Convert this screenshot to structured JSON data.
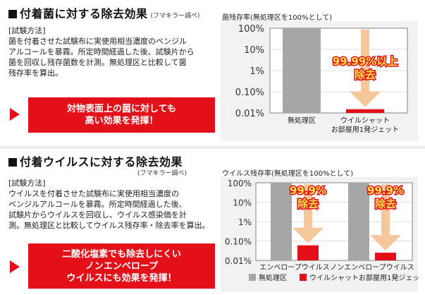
{
  "bacteria": {
    "title": "付着菌に対する除去効果",
    "ref": "(フマキラー調べ)",
    "method_label": "[試験方法]",
    "method_lines": [
      "菌を付着させた試験布に実使用相当濃度のベンジル",
      "アルコールを暴霧。所定時間経過した後、試験片から",
      "菌を回収し残存菌数を計測。無処理区と比較して菌",
      "残存率を算出。"
    ],
    "cta_lines": [
      "対物表面上の菌に対しても",
      "高い効果を発揮！"
    ],
    "chart_title": "菌残存率(無処理区を100%として)",
    "badge_lines": [
      "99.99%以上",
      "除去"
    ]
  },
  "virus": {
    "title": "付着ウイルスに対する除去効果",
    "ref": "(フマキラー調べ)",
    "method_label": "[試験方法]",
    "method_lines": [
      "ウイルスを付着させた試験布に実使用相当濃度の",
      "ベンジルアルコールを暴霧。所定時間経過した後、",
      "試験片からウイルスを回収し、ウイルス感染価を計",
      "測。無処理区と比較してウイルス残存率・除去率を算出。"
    ],
    "cta_lines": [
      "二酸化塩素でも除去しにくい",
      "ノンエンベロープ",
      "ウイルスにも効果を発揮！"
    ],
    "chart_title": "ウイルス残存率(無処理区を100%として)",
    "badge_lines": [
      "99.9%",
      "除去"
    ],
    "legend": [
      "無処理区",
      "ウイルシャット お部屋用1発ジェット"
    ]
  },
  "colors": {
    "accent_red": "#e41019",
    "gray_bar": "#a6a6a6",
    "arrow_orange": "#f6c79a",
    "badge_yellow": "#ffe14d"
  },
  "chart_data": [
    {
      "type": "bar",
      "scale": "log",
      "title": "菌残存率(無処理区を100%として)",
      "ylim": [
        0.01,
        100
      ],
      "yticks": [
        "100%",
        "10%",
        "1%",
        "0.10%",
        "0.01%"
      ],
      "categories": [
        "無処理区",
        "ウイルシャット お部屋用1発ジェット"
      ],
      "values": [
        100,
        0.015
      ],
      "bar_colors": [
        "#a6a6a6",
        "#e41019"
      ],
      "annotation": "99.99%以上 除去"
    },
    {
      "type": "bar",
      "scale": "log",
      "title": "ウイルス残存率(無処理区を100%として)",
      "ylim": [
        0.01,
        100
      ],
      "yticks": [
        "100%",
        "10%",
        "1%",
        "0.10%",
        "0.01%"
      ],
      "categories": [
        "エンベロープウイルス",
        "ノンエンベロープウイルス"
      ],
      "series": [
        {
          "name": "無処理区",
          "values": [
            100,
            100
          ]
        },
        {
          "name": "ウイルシャット お部屋用1発ジェット",
          "values": [
            0.06,
            0.025
          ]
        }
      ],
      "annotation": "99.9% 除去",
      "legend_position": "bottom"
    }
  ]
}
